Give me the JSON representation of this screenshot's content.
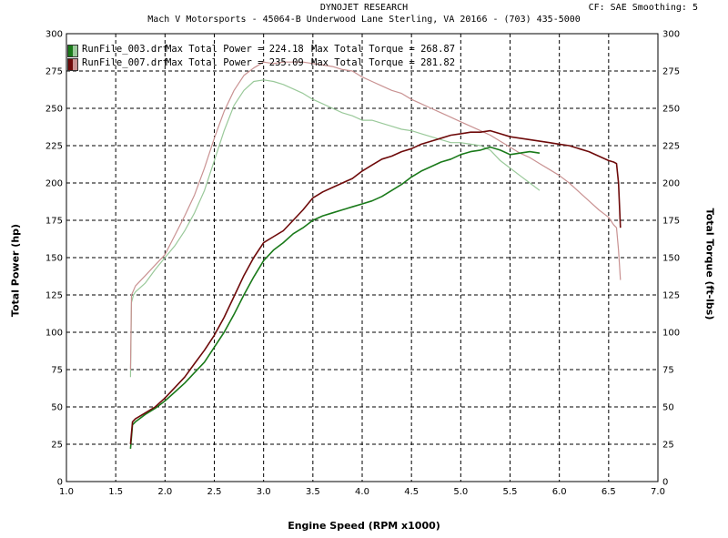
{
  "header": {
    "title": "DYNOJET RESEARCH",
    "subtitle": "Mach V Motorsports - 45064-B Underwood Lane  Sterling, VA  20166 - (703) 435-5000",
    "correction": "CF: SAE  Smoothing: 5"
  },
  "colors": {
    "run1": "#1a7a1a",
    "run1_torque": "#9ac99a",
    "run2": "#6e0a0a",
    "run2_torque": "#c99292",
    "grid": "#000000"
  },
  "legend": [
    {
      "file": "RunFile_003.drf",
      "power": "Max Total Power = 224.18",
      "torque": "Max Total Torque = 268.87"
    },
    {
      "file": "RunFile_007.drf",
      "power": "Max Total Power = 235.09",
      "torque": "Max Total Torque = 281.82"
    }
  ],
  "chart_data": {
    "type": "line",
    "xlabel": "Engine Speed (RPM x1000)",
    "ylabel": "Total Power (hp)",
    "ylabel_right": "Total Torque (ft-lbs)",
    "xlim": [
      1.0,
      7.0
    ],
    "ylim": [
      0,
      300
    ],
    "ylim_right": [
      0,
      300
    ],
    "x_ticks": [
      "1.0",
      "1.5",
      "2.0",
      "2.5",
      "3.0",
      "3.5",
      "4.0",
      "4.5",
      "5.0",
      "5.5",
      "6.0",
      "6.5",
      "7.0"
    ],
    "y_ticks": [
      "0",
      "25",
      "50",
      "75",
      "100",
      "125",
      "150",
      "175",
      "200",
      "225",
      "250",
      "275",
      "300"
    ],
    "grid": true,
    "legend_position": "top-left",
    "series": [
      {
        "name": "RunFile_003.drf",
        "measure": "Total Power",
        "color": "#1a7a1a",
        "x": [
          1.65,
          1.67,
          1.7,
          1.8,
          1.9,
          2.0,
          2.1,
          2.2,
          2.3,
          2.4,
          2.5,
          2.6,
          2.7,
          2.8,
          2.9,
          3.0,
          3.1,
          3.2,
          3.3,
          3.4,
          3.5,
          3.6,
          3.7,
          3.8,
          3.9,
          4.0,
          4.1,
          4.2,
          4.3,
          4.4,
          4.5,
          4.6,
          4.7,
          4.8,
          4.9,
          5.0,
          5.1,
          5.2,
          5.3,
          5.4,
          5.5,
          5.6,
          5.7,
          5.8
        ],
        "y": [
          22,
          38,
          40,
          45,
          49,
          54,
          60,
          66,
          73,
          80,
          90,
          100,
          112,
          125,
          137,
          148,
          155,
          160,
          166,
          170,
          175,
          178,
          180,
          182,
          184,
          186,
          188,
          191,
          195,
          199,
          204,
          208,
          211,
          214,
          216,
          219,
          221,
          222,
          224,
          222,
          219,
          220,
          221,
          220
        ]
      },
      {
        "name": "RunFile_003.drf",
        "measure": "Total Torque",
        "color": "#9ac99a",
        "x": [
          1.65,
          1.66,
          1.68,
          1.7,
          1.8,
          1.9,
          2.0,
          2.1,
          2.2,
          2.3,
          2.4,
          2.5,
          2.6,
          2.7,
          2.8,
          2.9,
          3.0,
          3.1,
          3.2,
          3.3,
          3.4,
          3.5,
          3.6,
          3.7,
          3.8,
          3.9,
          4.0,
          4.1,
          4.2,
          4.3,
          4.4,
          4.5,
          4.6,
          4.7,
          4.8,
          4.9,
          5.0,
          5.1,
          5.2,
          5.3,
          5.4,
          5.5,
          5.6,
          5.7,
          5.8
        ],
        "y": [
          70,
          120,
          125,
          127,
          133,
          142,
          150,
          158,
          168,
          180,
          195,
          215,
          235,
          252,
          262,
          268,
          269,
          268,
          266,
          263,
          260,
          256,
          253,
          250,
          247,
          245,
          242,
          242,
          240,
          238,
          236,
          235,
          233,
          231,
          229,
          227,
          227,
          226,
          225,
          222,
          215,
          210,
          205,
          200,
          195
        ]
      },
      {
        "name": "RunFile_007.drf",
        "measure": "Total Power",
        "color": "#6e0a0a",
        "x": [
          1.65,
          1.67,
          1.7,
          1.8,
          1.9,
          2.0,
          2.1,
          2.2,
          2.3,
          2.4,
          2.5,
          2.6,
          2.7,
          2.8,
          2.9,
          3.0,
          3.1,
          3.2,
          3.3,
          3.4,
          3.5,
          3.6,
          3.7,
          3.8,
          3.9,
          4.0,
          4.1,
          4.2,
          4.3,
          4.4,
          4.5,
          4.6,
          4.7,
          4.8,
          4.9,
          5.0,
          5.1,
          5.2,
          5.3,
          5.4,
          5.5,
          5.6,
          5.7,
          5.8,
          5.9,
          6.0,
          6.1,
          6.2,
          6.3,
          6.4,
          6.5,
          6.55,
          6.58,
          6.6,
          6.62
        ],
        "y": [
          25,
          40,
          42,
          46,
          50,
          56,
          63,
          70,
          79,
          88,
          98,
          110,
          124,
          138,
          150,
          160,
          164,
          168,
          175,
          182,
          190,
          194,
          197,
          200,
          203,
          208,
          212,
          216,
          218,
          221,
          223,
          226,
          228,
          230,
          232,
          233,
          234,
          234,
          235,
          233,
          231,
          230,
          229,
          228,
          227,
          226,
          225,
          223,
          221,
          218,
          215,
          214,
          213,
          200,
          170
        ]
      },
      {
        "name": "RunFile_007.drf",
        "measure": "Total Torque",
        "color": "#c99292",
        "x": [
          1.65,
          1.66,
          1.68,
          1.7,
          1.8,
          1.9,
          2.0,
          2.1,
          2.2,
          2.3,
          2.4,
          2.5,
          2.6,
          2.7,
          2.8,
          2.9,
          3.0,
          3.1,
          3.2,
          3.3,
          3.4,
          3.5,
          3.6,
          3.7,
          3.8,
          3.9,
          4.0,
          4.1,
          4.2,
          4.3,
          4.4,
          4.5,
          4.6,
          4.7,
          4.8,
          4.9,
          5.0,
          5.1,
          5.2,
          5.3,
          5.4,
          5.5,
          5.6,
          5.7,
          5.8,
          5.9,
          6.0,
          6.1,
          6.2,
          6.3,
          6.4,
          6.5,
          6.55,
          6.58,
          6.6,
          6.62
        ],
        "y": [
          75,
          125,
          128,
          131,
          138,
          145,
          152,
          165,
          178,
          192,
          210,
          230,
          248,
          262,
          272,
          277,
          281,
          280,
          281,
          281,
          281,
          280,
          279,
          278,
          276,
          275,
          271,
          268,
          265,
          262,
          260,
          256,
          253,
          250,
          247,
          244,
          241,
          238,
          235,
          232,
          228,
          224,
          220,
          217,
          213,
          209,
          205,
          200,
          194,
          188,
          182,
          177,
          172,
          170,
          155,
          135
        ]
      }
    ]
  }
}
